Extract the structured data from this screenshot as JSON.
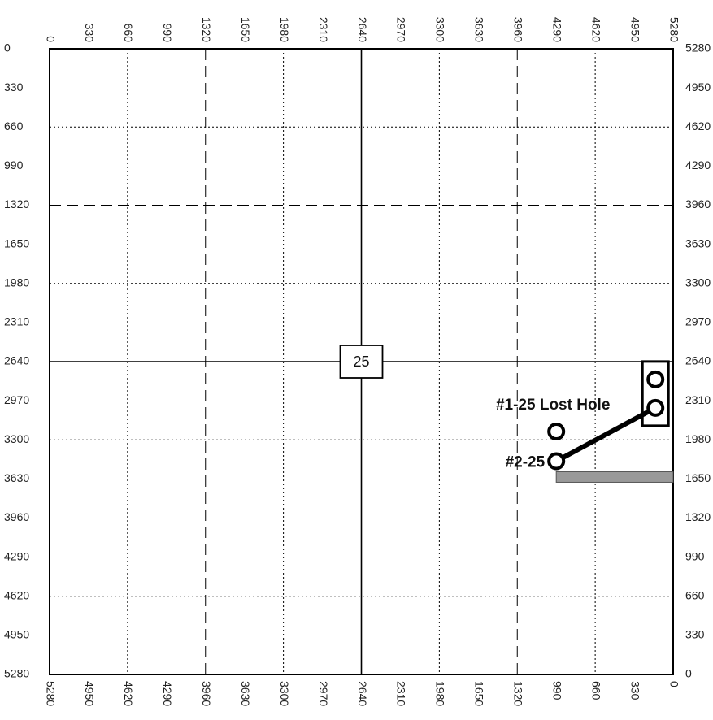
{
  "section_number": "25",
  "scale": {
    "min": 0,
    "max": 5280,
    "step": 330
  },
  "ticks": {
    "top": [
      "0",
      "330",
      "660",
      "990",
      "1320",
      "1650",
      "1980",
      "2310",
      "2640",
      "2970",
      "3300",
      "3630",
      "3960",
      "4290",
      "4620",
      "4950",
      "5280"
    ],
    "left": [
      "0",
      "330",
      "660",
      "990",
      "1320",
      "1650",
      "1980",
      "2310",
      "2640",
      "2970",
      "3300",
      "3630",
      "3960",
      "4290",
      "4620",
      "4950",
      "5280"
    ],
    "right": [
      "5280",
      "4950",
      "4620",
      "4290",
      "3960",
      "3630",
      "3300",
      "2970",
      "2640",
      "2310",
      "1980",
      "1650",
      "1320",
      "990",
      "660",
      "330",
      "0"
    ],
    "bottom": [
      "5280",
      "4950",
      "4620",
      "4290",
      "3960",
      "3630",
      "3300",
      "2970",
      "2640",
      "2310",
      "1980",
      "1650",
      "1320",
      "990",
      "660",
      "330",
      "0"
    ]
  },
  "wells": [
    {
      "label": "#1-25 Lost Hole",
      "x": 4290,
      "y": 3230
    },
    {
      "label": "#2-25",
      "x": 4290,
      "y": 3480
    }
  ],
  "surface_wells": [
    {
      "x": 5130,
      "y": 2790
    },
    {
      "x": 5130,
      "y": 3030
    }
  ],
  "bar_symbol": {
    "x1": 4290,
    "x2": 5280,
    "y": 3610
  },
  "colors": {
    "line": "#000000",
    "bar_fill": "#999999"
  }
}
